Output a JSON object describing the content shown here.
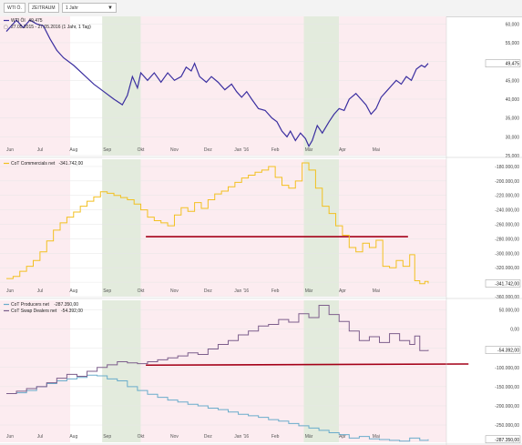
{
  "toolbar": {
    "symbol_label": "WTI Ö.",
    "period_label": "ZEITRAUM",
    "range_label": "1 Jahr"
  },
  "colors": {
    "pink_band": "#fcecf0",
    "green_band": "#e3ebdd",
    "wti": "#3b2fa0",
    "commercials": "#f2c020",
    "producers": "#6aaccb",
    "swap_dealers": "#7d5e8c",
    "support_line": "#a40018"
  },
  "x_axis": {
    "months": [
      "Jun",
      "Jul",
      "Aug",
      "Sep",
      "Okt",
      "Nov",
      "Dez",
      "Jan '16",
      "Feb",
      "Mär",
      "Apr",
      "Mai"
    ]
  },
  "chart_data": [
    {
      "type": "line",
      "legend": [
        {
          "name": "WTI Öl",
          "value": "49,475"
        },
        {
          "name": "27.05.2015 - 27.05.2016 (1 Jahr, 1 Tag)",
          "value": ""
        }
      ],
      "last_value_label": "49,475",
      "ylim": [
        25,
        62
      ],
      "y_ticks": [
        "25,000",
        "30,000",
        "35,000",
        "40,000",
        "45,000",
        "50,000",
        "55,000",
        "60,000"
      ],
      "series": [
        {
          "name": "WTI Öl",
          "values": [
            [
              0,
              58
            ],
            [
              0.3,
              61
            ],
            [
              0.5,
              59
            ],
            [
              0.7,
              61
            ],
            [
              0.9,
              60
            ],
            [
              1.1,
              59.5
            ],
            [
              1.3,
              56
            ],
            [
              1.5,
              53
            ],
            [
              1.7,
              51
            ],
            [
              2.0,
              49
            ],
            [
              2.3,
              46.5
            ],
            [
              2.6,
              44
            ],
            [
              2.9,
              42
            ],
            [
              3.2,
              40
            ],
            [
              3.45,
              38.5
            ],
            [
              3.6,
              41
            ],
            [
              3.75,
              46
            ],
            [
              3.9,
              43
            ],
            [
              4.0,
              47
            ],
            [
              4.2,
              45
            ],
            [
              4.4,
              47
            ],
            [
              4.6,
              44.5
            ],
            [
              4.8,
              47
            ],
            [
              5.0,
              45
            ],
            [
              5.2,
              46
            ],
            [
              5.35,
              48.5
            ],
            [
              5.5,
              47.5
            ],
            [
              5.6,
              49.5
            ],
            [
              5.75,
              46
            ],
            [
              5.95,
              44.5
            ],
            [
              6.1,
              46
            ],
            [
              6.3,
              44.5
            ],
            [
              6.5,
              42.5
            ],
            [
              6.7,
              44
            ],
            [
              6.85,
              42
            ],
            [
              7.0,
              40.5
            ],
            [
              7.15,
              42
            ],
            [
              7.3,
              40
            ],
            [
              7.5,
              37.5
            ],
            [
              7.7,
              37
            ],
            [
              7.9,
              35
            ],
            [
              8.05,
              34
            ],
            [
              8.2,
              31.5
            ],
            [
              8.35,
              30
            ],
            [
              8.45,
              31.5
            ],
            [
              8.6,
              29
            ],
            [
              8.75,
              31
            ],
            [
              8.9,
              29.5
            ],
            [
              9.0,
              27.5
            ],
            [
              9.1,
              29
            ],
            [
              9.25,
              33
            ],
            [
              9.4,
              31
            ],
            [
              9.6,
              34
            ],
            [
              9.75,
              36
            ],
            [
              9.9,
              37.5
            ],
            [
              10.05,
              37
            ],
            [
              10.2,
              40
            ],
            [
              10.4,
              41.5
            ],
            [
              10.55,
              40
            ],
            [
              10.7,
              38.5
            ],
            [
              10.85,
              36
            ],
            [
              11.0,
              37.5
            ],
            [
              11.15,
              40.5
            ],
            [
              11.3,
              42
            ],
            [
              11.45,
              43.5
            ],
            [
              11.6,
              45
            ],
            [
              11.75,
              44
            ],
            [
              11.9,
              46
            ],
            [
              12.05,
              45
            ],
            [
              12.2,
              48
            ],
            [
              12.35,
              49
            ],
            [
              12.45,
              48.5
            ],
            [
              12.55,
              49.5
            ]
          ]
        }
      ]
    },
    {
      "type": "line",
      "legend": [
        {
          "name": "CoT Commercials net",
          "value": "-341.742,00"
        }
      ],
      "last_value_label": "-341.742,00",
      "ylim": [
        -360000,
        -170000
      ],
      "y_ticks": [
        "-360.000,00",
        "-340.000,00",
        "-320.000,00",
        "-300.000,00",
        "-280.000,00",
        "-260.000,00",
        "-240.000,00",
        "-220.000,00",
        "-200.000,00",
        "-180.000,00"
      ],
      "trend_line": {
        "x": [
          4.15,
          11.95
        ],
        "y": [
          -277000,
          -277000
        ]
      },
      "series": [
        {
          "name": "CoT Commercials net",
          "values": [
            [
              0,
              -335000
            ],
            [
              0.2,
              -332000
            ],
            [
              0.4,
              -325000
            ],
            [
              0.6,
              -318000
            ],
            [
              0.8,
              -310000
            ],
            [
              1.0,
              -298000
            ],
            [
              1.2,
              -283000
            ],
            [
              1.4,
              -268000
            ],
            [
              1.6,
              -258000
            ],
            [
              1.8,
              -250000
            ],
            [
              2.0,
              -243000
            ],
            [
              2.2,
              -235000
            ],
            [
              2.4,
              -228000
            ],
            [
              2.6,
              -222000
            ],
            [
              2.8,
              -215000
            ],
            [
              3.0,
              -217000
            ],
            [
              3.2,
              -220000
            ],
            [
              3.4,
              -223000
            ],
            [
              3.6,
              -226000
            ],
            [
              3.8,
              -232000
            ],
            [
              4.0,
              -240000
            ],
            [
              4.2,
              -250000
            ],
            [
              4.4,
              -255000
            ],
            [
              4.6,
              -258000
            ],
            [
              4.8,
              -262000
            ],
            [
              5.0,
              -247000
            ],
            [
              5.2,
              -237000
            ],
            [
              5.4,
              -242000
            ],
            [
              5.6,
              -230000
            ],
            [
              5.8,
              -238000
            ],
            [
              6.0,
              -226000
            ],
            [
              6.2,
              -218000
            ],
            [
              6.4,
              -214000
            ],
            [
              6.6,
              -208000
            ],
            [
              6.8,
              -202000
            ],
            [
              7.0,
              -196000
            ],
            [
              7.2,
              -192000
            ],
            [
              7.4,
              -188000
            ],
            [
              7.6,
              -185000
            ],
            [
              7.8,
              -180000
            ],
            [
              8.0,
              -195000
            ],
            [
              8.2,
              -206000
            ],
            [
              8.4,
              -210000
            ],
            [
              8.6,
              -200000
            ],
            [
              8.8,
              -175000
            ],
            [
              9.0,
              -185000
            ],
            [
              9.2,
              -210000
            ],
            [
              9.4,
              -235000
            ],
            [
              9.6,
              -245000
            ],
            [
              9.8,
              -262000
            ],
            [
              10.0,
              -275000
            ],
            [
              10.2,
              -292000
            ],
            [
              10.4,
              -298000
            ],
            [
              10.6,
              -286000
            ],
            [
              10.8,
              -292000
            ],
            [
              11.0,
              -282000
            ],
            [
              11.2,
              -318000
            ],
            [
              11.4,
              -320000
            ],
            [
              11.6,
              -310000
            ],
            [
              11.8,
              -318000
            ],
            [
              12.0,
              -302000
            ],
            [
              12.15,
              -338000
            ],
            [
              12.3,
              -342000
            ],
            [
              12.45,
              -339000
            ],
            [
              12.55,
              -341742
            ]
          ]
        }
      ]
    },
    {
      "type": "line",
      "legend": [
        {
          "name": "CoT Producers net",
          "value": "-287.350,00"
        },
        {
          "name": "CoT Swap Dealers net",
          "value": "-54.392,00"
        }
      ],
      "last_value_labels": [
        "-54.392,00",
        "-287.350,00"
      ],
      "ylim": [
        -295000,
        75000
      ],
      "y_ticks": [
        "-250.000,00",
        "-200.000,00",
        "-150.000,00",
        "-100.000,00",
        "-50.000,00",
        "0,00",
        "50.000,00"
      ],
      "trend_line": {
        "x": [
          4.15,
          13.75
        ],
        "y": [
          -94000,
          -91000
        ]
      },
      "series": [
        {
          "name": "CoT Producers net",
          "values": [
            [
              0,
              -168000
            ],
            [
              0.3,
              -166000
            ],
            [
              0.6,
              -160000
            ],
            [
              0.9,
              -150000
            ],
            [
              1.2,
              -142000
            ],
            [
              1.5,
              -135000
            ],
            [
              1.8,
              -130000
            ],
            [
              2.1,
              -126000
            ],
            [
              2.4,
              -120000
            ],
            [
              2.7,
              -122000
            ],
            [
              3.0,
              -130000
            ],
            [
              3.3,
              -135000
            ],
            [
              3.6,
              -150000
            ],
            [
              3.9,
              -160000
            ],
            [
              4.2,
              -170000
            ],
            [
              4.5,
              -178000
            ],
            [
              4.8,
              -185000
            ],
            [
              5.1,
              -190000
            ],
            [
              5.4,
              -196000
            ],
            [
              5.7,
              -200000
            ],
            [
              6.0,
              -206000
            ],
            [
              6.3,
              -210000
            ],
            [
              6.6,
              -216000
            ],
            [
              6.9,
              -222000
            ],
            [
              7.2,
              -226000
            ],
            [
              7.5,
              -230000
            ],
            [
              7.8,
              -236000
            ],
            [
              8.1,
              -240000
            ],
            [
              8.4,
              -246000
            ],
            [
              8.7,
              -252000
            ],
            [
              9.0,
              -258000
            ],
            [
              9.3,
              -264000
            ],
            [
              9.6,
              -270000
            ],
            [
              9.9,
              -275000
            ],
            [
              10.2,
              -284000
            ],
            [
              10.5,
              -280000
            ],
            [
              10.8,
              -286000
            ],
            [
              11.1,
              -288000
            ],
            [
              11.4,
              -290000
            ],
            [
              11.7,
              -292000
            ],
            [
              12.0,
              -284000
            ],
            [
              12.3,
              -290000
            ],
            [
              12.55,
              -287350
            ]
          ]
        },
        {
          "name": "CoT Swap Dealers net",
          "values": [
            [
              0,
              -168000
            ],
            [
              0.3,
              -162000
            ],
            [
              0.6,
              -155000
            ],
            [
              0.9,
              -150000
            ],
            [
              1.2,
              -140000
            ],
            [
              1.5,
              -128000
            ],
            [
              1.8,
              -118000
            ],
            [
              2.1,
              -123000
            ],
            [
              2.4,
              -110000
            ],
            [
              2.7,
              -100000
            ],
            [
              3.0,
              -93000
            ],
            [
              3.3,
              -85000
            ],
            [
              3.6,
              -88000
            ],
            [
              3.9,
              -90000
            ],
            [
              4.2,
              -85000
            ],
            [
              4.5,
              -80000
            ],
            [
              4.8,
              -75000
            ],
            [
              5.1,
              -70000
            ],
            [
              5.4,
              -62000
            ],
            [
              5.7,
              -66000
            ],
            [
              6.0,
              -52000
            ],
            [
              6.3,
              -40000
            ],
            [
              6.6,
              -30000
            ],
            [
              6.9,
              -15000
            ],
            [
              7.2,
              -5000
            ],
            [
              7.5,
              8000
            ],
            [
              7.8,
              12000
            ],
            [
              8.1,
              25000
            ],
            [
              8.4,
              18000
            ],
            [
              8.7,
              40000
            ],
            [
              9.0,
              30000
            ],
            [
              9.3,
              62000
            ],
            [
              9.6,
              38000
            ],
            [
              9.9,
              20000
            ],
            [
              10.2,
              -5000
            ],
            [
              10.5,
              -30000
            ],
            [
              10.8,
              -20000
            ],
            [
              11.1,
              -35000
            ],
            [
              11.4,
              -12000
            ],
            [
              11.7,
              -30000
            ],
            [
              12.0,
              -40000
            ],
            [
              12.15,
              -18000
            ],
            [
              12.3,
              -56000
            ],
            [
              12.55,
              -54392
            ]
          ]
        }
      ]
    }
  ]
}
